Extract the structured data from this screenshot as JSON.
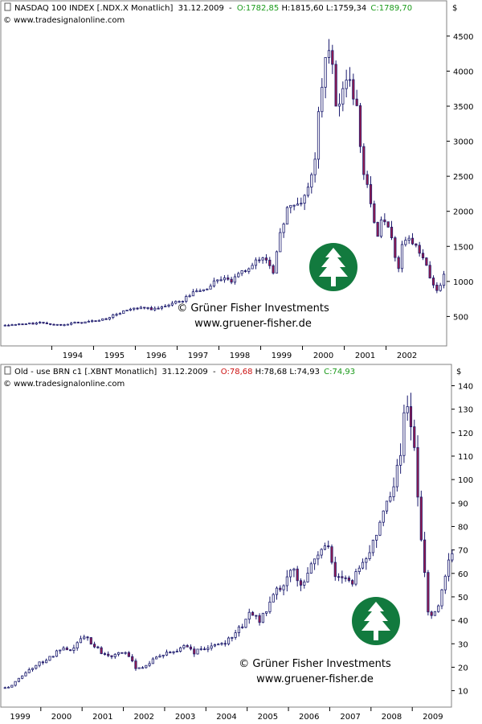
{
  "chart_data": [
    {
      "type": "candlestick",
      "header": {
        "symbol_text": "NASDAQ 100 INDEX [.NDX.X  Monatlich]",
        "date": "31.12.2009",
        "sep": "-",
        "open_text": "O:1782,85",
        "high_text": "H:1815,60",
        "low_text": "L:1759,34",
        "close_text": "C:1789,70",
        "source": "© www.tradesignalonline.com"
      },
      "currency": "$",
      "ylim": [
        80,
        4900
      ],
      "yticks": [
        500,
        1000,
        1500,
        2000,
        2500,
        3000,
        3500,
        4000,
        4500
      ],
      "xlim": [
        1992.3,
        2002.95
      ],
      "xticks": [
        "1994",
        "1995",
        "1996",
        "1997",
        "1998",
        "1999",
        "2000",
        "2001",
        "2002"
      ],
      "xtick_positions": [
        1994,
        1995,
        1996,
        1997,
        1998,
        1999,
        2000,
        2001,
        2002
      ],
      "watermark": {
        "line1": "© Grüner Fisher Investments",
        "line2": "www.gruener-fisher.de"
      },
      "close_path": [
        [
          1992.3,
          370
        ],
        [
          1992.9,
          395
        ],
        [
          1993.3,
          410
        ],
        [
          1993.6,
          380
        ],
        [
          1993.9,
          400
        ],
        [
          1994.3,
          420
        ],
        [
          1994.7,
          450
        ],
        [
          1995.0,
          520
        ],
        [
          1995.3,
          590
        ],
        [
          1995.7,
          620
        ],
        [
          1996.0,
          600
        ],
        [
          1996.3,
          680
        ],
        [
          1996.6,
          720
        ],
        [
          1996.9,
          850
        ],
        [
          1997.2,
          890
        ],
        [
          1997.5,
          1050
        ],
        [
          1997.8,
          1000
        ],
        [
          1998.0,
          1100
        ],
        [
          1998.3,
          1250
        ],
        [
          1998.6,
          1350
        ],
        [
          1998.8,
          1150
        ],
        [
          1999.0,
          1750
        ],
        [
          1999.15,
          2100
        ],
        [
          1999.3,
          2050
        ],
        [
          1999.5,
          2150
        ],
        [
          1999.7,
          2450
        ],
        [
          1999.8,
          2750
        ],
        [
          1999.9,
          3600
        ],
        [
          2000.0,
          3800
        ],
        [
          2000.1,
          4400
        ],
        [
          2000.2,
          4150
        ],
        [
          2000.3,
          3600
        ],
        [
          2000.4,
          3400
        ],
        [
          2000.5,
          3800
        ],
        [
          2000.6,
          4100
        ],
        [
          2000.7,
          3600
        ],
        [
          2000.8,
          3500
        ],
        [
          2000.9,
          2800
        ],
        [
          2001.0,
          2500
        ],
        [
          2001.1,
          2300
        ],
        [
          2001.2,
          1900
        ],
        [
          2001.3,
          1600
        ],
        [
          2001.4,
          2000
        ],
        [
          2001.5,
          1850
        ],
        [
          2001.6,
          1700
        ],
        [
          2001.7,
          1400
        ],
        [
          2001.8,
          1200
        ],
        [
          2001.9,
          1600
        ],
        [
          2002.0,
          1650
        ],
        [
          2002.2,
          1500
        ],
        [
          2002.4,
          1300
        ],
        [
          2002.5,
          1150
        ],
        [
          2002.6,
          950
        ],
        [
          2002.75,
          850
        ],
        [
          2002.9,
          1100
        ]
      ]
    },
    {
      "type": "candlestick",
      "header": {
        "symbol_text": "Old - use BRN c1 [.XBNT  Monatlich]",
        "date": "31.12.2009",
        "sep": "-",
        "open_text": "O:78,68",
        "high_text": "H:78,68",
        "low_text": "L:74,93",
        "close_text": "C:74,93",
        "source": "© www.tradesignalonline.com"
      },
      "currency": "$",
      "ylim": [
        3,
        146
      ],
      "yticks": [
        10,
        20,
        30,
        40,
        50,
        60,
        70,
        80,
        90,
        100,
        110,
        120,
        130,
        140
      ],
      "xlim": [
        1998.55,
        2009.45
      ],
      "xticks": [
        "1999",
        "2000",
        "2001",
        "2002",
        "2003",
        "2004",
        "2005",
        "2006",
        "2007",
        "2008",
        "2009"
      ],
      "xtick_positions": [
        1999,
        2000,
        2001,
        2002,
        2003,
        2004,
        2005,
        2006,
        2007,
        2008,
        2009
      ],
      "watermark": {
        "line1": "© Grüner Fisher Investments",
        "line2": "www.gruener-fisher.de"
      },
      "close_path": [
        [
          1998.55,
          11
        ],
        [
          1998.8,
          12
        ],
        [
          1999.0,
          16
        ],
        [
          1999.3,
          20
        ],
        [
          1999.5,
          22
        ],
        [
          1999.8,
          25
        ],
        [
          2000.0,
          28
        ],
        [
          2000.2,
          26
        ],
        [
          2000.4,
          31
        ],
        [
          2000.6,
          33
        ],
        [
          2000.8,
          29
        ],
        [
          2001.0,
          26
        ],
        [
          2001.2,
          25
        ],
        [
          2001.4,
          27
        ],
        [
          2001.6,
          25
        ],
        [
          2001.8,
          20
        ],
        [
          2002.0,
          20
        ],
        [
          2002.2,
          23
        ],
        [
          2002.4,
          25
        ],
        [
          2002.6,
          26
        ],
        [
          2002.8,
          27
        ],
        [
          2003.0,
          30
        ],
        [
          2003.2,
          26
        ],
        [
          2003.4,
          28
        ],
        [
          2003.6,
          28
        ],
        [
          2003.8,
          30
        ],
        [
          2004.0,
          31
        ],
        [
          2004.2,
          35
        ],
        [
          2004.4,
          38
        ],
        [
          2004.6,
          44
        ],
        [
          2004.8,
          40
        ],
        [
          2005.0,
          45
        ],
        [
          2005.2,
          52
        ],
        [
          2005.4,
          55
        ],
        [
          2005.6,
          62
        ],
        [
          2005.8,
          55
        ],
        [
          2006.0,
          62
        ],
        [
          2006.2,
          68
        ],
        [
          2006.4,
          72
        ],
        [
          2006.5,
          70
        ],
        [
          2006.6,
          60
        ],
        [
          2006.8,
          58
        ],
        [
          2007.0,
          55
        ],
        [
          2007.2,
          62
        ],
        [
          2007.4,
          68
        ],
        [
          2007.6,
          75
        ],
        [
          2007.8,
          88
        ],
        [
          2007.9,
          92
        ],
        [
          2008.0,
          95
        ],
        [
          2008.1,
          102
        ],
        [
          2008.2,
          110
        ],
        [
          2008.3,
          125
        ],
        [
          2008.4,
          132
        ],
        [
          2008.5,
          120
        ],
        [
          2008.6,
          105
        ],
        [
          2008.7,
          75
        ],
        [
          2008.8,
          60
        ],
        [
          2008.9,
          40
        ],
        [
          2009.0,
          44
        ],
        [
          2009.15,
          47
        ],
        [
          2009.3,
          60
        ],
        [
          2009.45,
          70
        ]
      ]
    }
  ]
}
